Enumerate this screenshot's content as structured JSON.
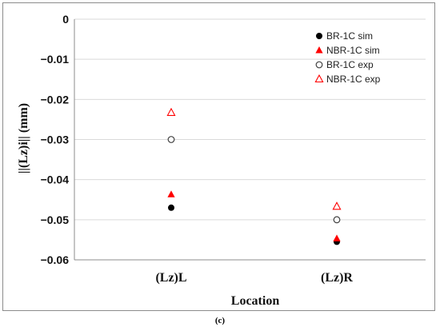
{
  "caption": "(c)",
  "chart_data": {
    "type": "scatter",
    "title": "",
    "xlabel": "Location",
    "ylabel": "||(Lz)i||  (mm)",
    "categories": [
      "(Lz)L",
      "(Lz)R"
    ],
    "ylim": [
      -0.06,
      0
    ],
    "yticks": [
      0,
      -0.01,
      -0.02,
      -0.03,
      -0.04,
      -0.05,
      -0.06
    ],
    "ytick_labels": [
      "0",
      "−0.01",
      "−0.02",
      "−0.03",
      "−0.04",
      "−0.05",
      "−0.06"
    ],
    "grid": "horizontal",
    "legend_position": "top-right",
    "series": [
      {
        "name": "BR-1C sim",
        "marker": "filled-circle",
        "color": "#000000",
        "values": [
          -0.047,
          -0.0555
        ]
      },
      {
        "name": "NBR-1C sim",
        "marker": "filled-triangle",
        "color": "#ff0000",
        "values": [
          -0.0437,
          -0.0547
        ]
      },
      {
        "name": "BR-1C exp",
        "marker": "open-circle",
        "color": "#404040",
        "values": [
          -0.03,
          -0.05
        ]
      },
      {
        "name": "NBR-1C exp",
        "marker": "open-triangle",
        "color": "#ff0000",
        "values": [
          -0.0233,
          -0.0467
        ]
      }
    ]
  }
}
